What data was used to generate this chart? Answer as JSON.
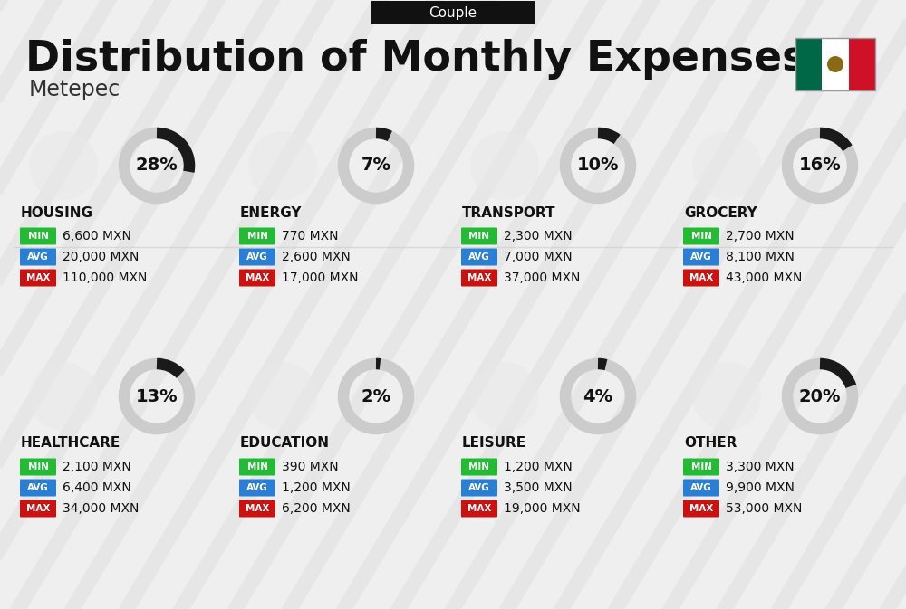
{
  "title": "Distribution of Monthly Expenses",
  "subtitle": "Couple",
  "location": "Metepec",
  "bg_color": "#efefef",
  "categories": [
    {
      "name": "HOUSING",
      "pct": 28,
      "min_val": "6,600 MXN",
      "avg_val": "20,000 MXN",
      "max_val": "110,000 MXN",
      "row": 0,
      "col": 0
    },
    {
      "name": "ENERGY",
      "pct": 7,
      "min_val": "770 MXN",
      "avg_val": "2,600 MXN",
      "max_val": "17,000 MXN",
      "row": 0,
      "col": 1
    },
    {
      "name": "TRANSPORT",
      "pct": 10,
      "min_val": "2,300 MXN",
      "avg_val": "7,000 MXN",
      "max_val": "37,000 MXN",
      "row": 0,
      "col": 2
    },
    {
      "name": "GROCERY",
      "pct": 16,
      "min_val": "2,700 MXN",
      "avg_val": "8,100 MXN",
      "max_val": "43,000 MXN",
      "row": 0,
      "col": 3
    },
    {
      "name": "HEALTHCARE",
      "pct": 13,
      "min_val": "2,100 MXN",
      "avg_val": "6,400 MXN",
      "max_val": "34,000 MXN",
      "row": 1,
      "col": 0
    },
    {
      "name": "EDUCATION",
      "pct": 2,
      "min_val": "390 MXN",
      "avg_val": "1,200 MXN",
      "max_val": "6,200 MXN",
      "row": 1,
      "col": 1
    },
    {
      "name": "LEISURE",
      "pct": 4,
      "min_val": "1,200 MXN",
      "avg_val": "3,500 MXN",
      "max_val": "19,000 MXN",
      "row": 1,
      "col": 2
    },
    {
      "name": "OTHER",
      "pct": 20,
      "min_val": "3,300 MXN",
      "avg_val": "9,900 MXN",
      "max_val": "53,000 MXN",
      "row": 1,
      "col": 3
    }
  ],
  "min_color": "#22bb33",
  "avg_color": "#2a7fd4",
  "max_color": "#cc1111",
  "donut_active": "#1a1a1a",
  "donut_inactive": "#cccccc",
  "stripe_color": "#e0e0e0"
}
